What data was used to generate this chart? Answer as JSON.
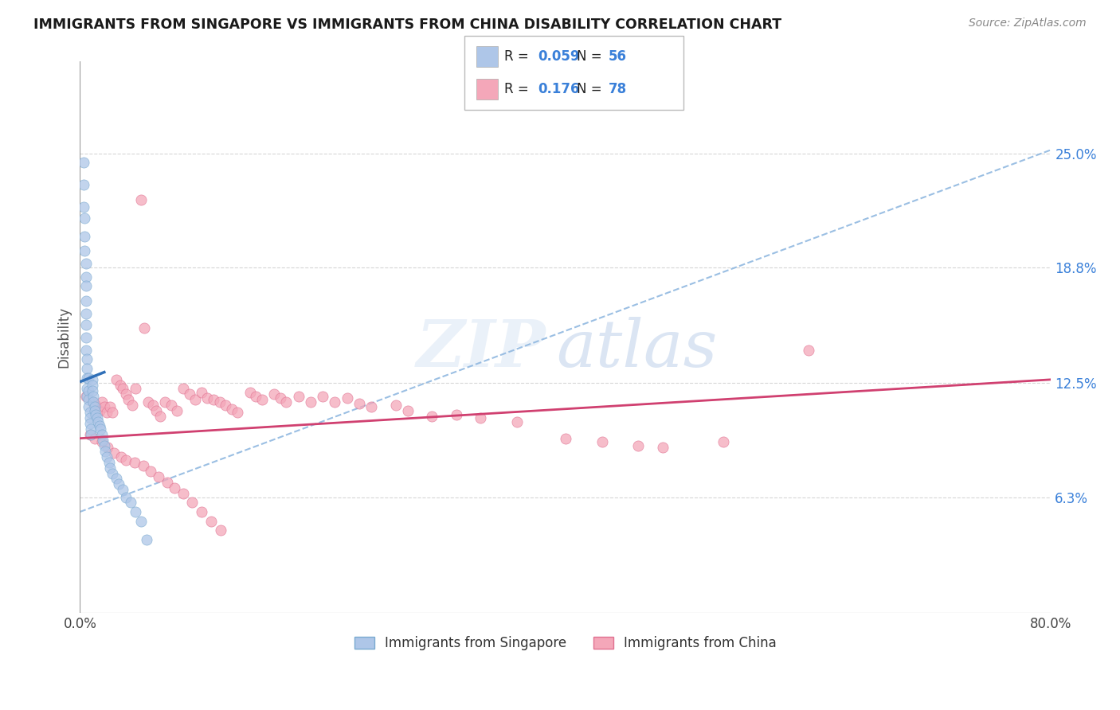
{
  "title": "IMMIGRANTS FROM SINGAPORE VS IMMIGRANTS FROM CHINA DISABILITY CORRELATION CHART",
  "source": "Source: ZipAtlas.com",
  "ylabel": "Disability",
  "xlim": [
    0.0,
    0.8
  ],
  "ylim": [
    0.0,
    0.3
  ],
  "yticks": [
    0.063,
    0.125,
    0.188,
    0.25
  ],
  "ytick_labels": [
    "6.3%",
    "12.5%",
    "18.8%",
    "25.0%"
  ],
  "xtick_labels": [
    "0.0%",
    "80.0%"
  ],
  "xtick_vals": [
    0.0,
    0.8
  ],
  "singapore_color": "#aec6e8",
  "singapore_edge_color": "#7aaad0",
  "china_color": "#f4a7b9",
  "china_edge_color": "#e07090",
  "singapore_line_color": "#3070b8",
  "china_line_color": "#d04070",
  "singapore_dash_color": "#90b8e0",
  "R_singapore": "0.059",
  "N_singapore": "56",
  "R_china": "0.176",
  "N_china": "78",
  "legend_label_singapore": "Immigrants from Singapore",
  "legend_label_china": "Immigrants from China",
  "watermark_zip": "ZIP",
  "watermark_atlas": "atlas",
  "sg_x": [
    0.003,
    0.003,
    0.003,
    0.004,
    0.004,
    0.004,
    0.005,
    0.005,
    0.005,
    0.005,
    0.005,
    0.005,
    0.005,
    0.005,
    0.006,
    0.006,
    0.006,
    0.006,
    0.006,
    0.007,
    0.007,
    0.007,
    0.007,
    0.008,
    0.008,
    0.008,
    0.009,
    0.009,
    0.01,
    0.01,
    0.01,
    0.011,
    0.011,
    0.012,
    0.012,
    0.013,
    0.014,
    0.015,
    0.016,
    0.017,
    0.018,
    0.019,
    0.02,
    0.021,
    0.022,
    0.024,
    0.025,
    0.027,
    0.03,
    0.032,
    0.035,
    0.038,
    0.042,
    0.046,
    0.05,
    0.055
  ],
  "sg_y": [
    0.245,
    0.233,
    0.221,
    0.215,
    0.205,
    0.197,
    0.19,
    0.183,
    0.178,
    0.17,
    0.163,
    0.157,
    0.15,
    0.143,
    0.138,
    0.133,
    0.128,
    0.122,
    0.118,
    0.128,
    0.121,
    0.116,
    0.112,
    0.109,
    0.106,
    0.103,
    0.1,
    0.097,
    0.127,
    0.124,
    0.121,
    0.118,
    0.115,
    0.112,
    0.11,
    0.108,
    0.106,
    0.104,
    0.102,
    0.1,
    0.097,
    0.094,
    0.091,
    0.088,
    0.085,
    0.082,
    0.079,
    0.076,
    0.073,
    0.07,
    0.067,
    0.063,
    0.06,
    0.055,
    0.05,
    0.04
  ],
  "cn_x": [
    0.005,
    0.01,
    0.013,
    0.016,
    0.018,
    0.02,
    0.022,
    0.025,
    0.027,
    0.03,
    0.033,
    0.035,
    0.038,
    0.04,
    0.043,
    0.046,
    0.05,
    0.053,
    0.056,
    0.06,
    0.063,
    0.066,
    0.07,
    0.075,
    0.08,
    0.085,
    0.09,
    0.095,
    0.1,
    0.105,
    0.11,
    0.115,
    0.12,
    0.125,
    0.13,
    0.14,
    0.145,
    0.15,
    0.16,
    0.165,
    0.17,
    0.18,
    0.19,
    0.2,
    0.21,
    0.22,
    0.23,
    0.24,
    0.26,
    0.27,
    0.29,
    0.31,
    0.33,
    0.36,
    0.4,
    0.43,
    0.46,
    0.48,
    0.53,
    0.6,
    0.008,
    0.012,
    0.018,
    0.023,
    0.028,
    0.034,
    0.038,
    0.045,
    0.052,
    0.058,
    0.065,
    0.072,
    0.078,
    0.085,
    0.092,
    0.1,
    0.108,
    0.116
  ],
  "cn_y": [
    0.118,
    0.115,
    0.113,
    0.11,
    0.115,
    0.112,
    0.109,
    0.112,
    0.109,
    0.127,
    0.124,
    0.122,
    0.119,
    0.116,
    0.113,
    0.122,
    0.225,
    0.155,
    0.115,
    0.113,
    0.11,
    0.107,
    0.115,
    0.113,
    0.11,
    0.122,
    0.119,
    0.116,
    0.12,
    0.117,
    0.116,
    0.115,
    0.113,
    0.111,
    0.109,
    0.12,
    0.118,
    0.116,
    0.119,
    0.117,
    0.115,
    0.118,
    0.115,
    0.118,
    0.115,
    0.117,
    0.114,
    0.112,
    0.113,
    0.11,
    0.107,
    0.108,
    0.106,
    0.104,
    0.095,
    0.093,
    0.091,
    0.09,
    0.093,
    0.143,
    0.097,
    0.095,
    0.093,
    0.09,
    0.087,
    0.085,
    0.083,
    0.082,
    0.08,
    0.077,
    0.074,
    0.071,
    0.068,
    0.065,
    0.06,
    0.055,
    0.05,
    0.045
  ],
  "sg_trend_x": [
    0.0,
    0.8
  ],
  "sg_trend_y": [
    0.055,
    0.252
  ],
  "sg_line_x": [
    0.001,
    0.02
  ],
  "sg_line_y": [
    0.126,
    0.131
  ],
  "cn_trend_x": [
    0.0,
    0.8
  ],
  "cn_trend_y": [
    0.095,
    0.127
  ]
}
